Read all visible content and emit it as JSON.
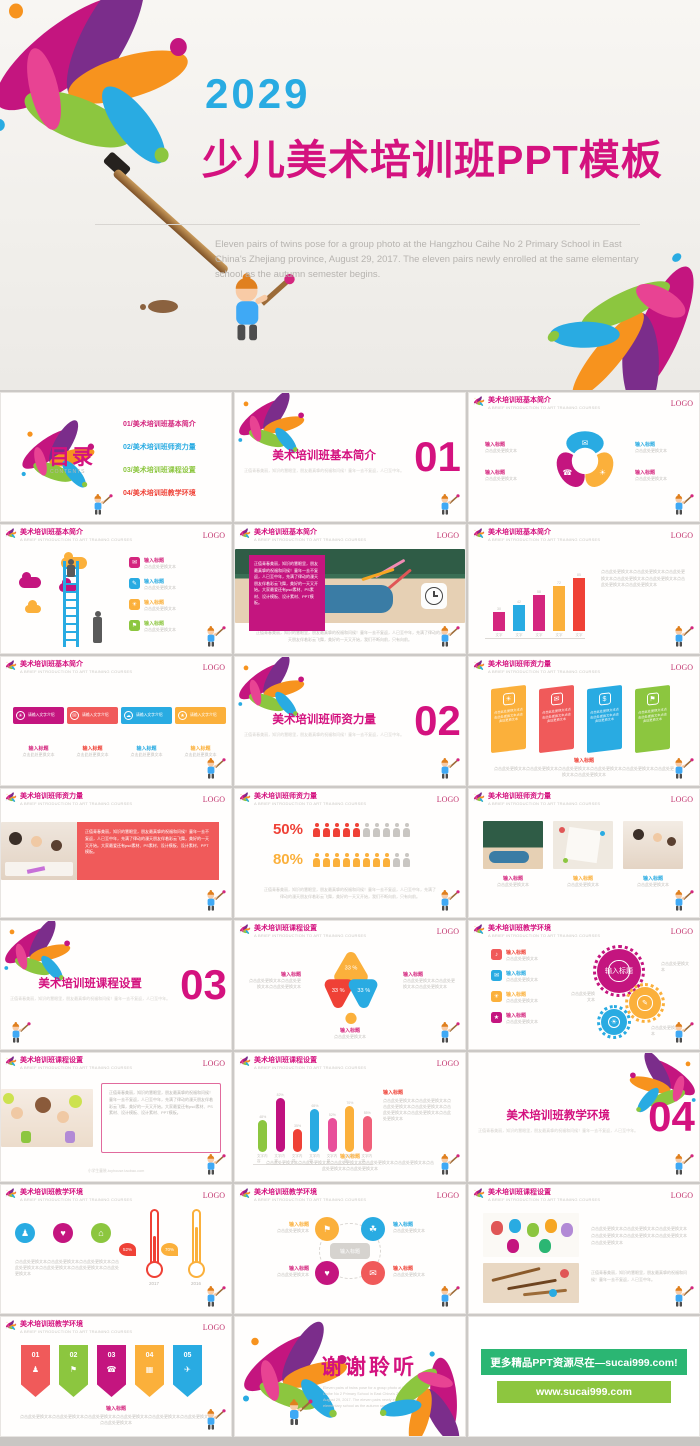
{
  "hero": {
    "year": "2029",
    "title": "少儿美术培训班PPT模板",
    "desc": "Eleven pairs of twins pose for a group photo at the Hangzhou Caihe No 2 Primary School in East China's Zhejiang province, August 29, 2017. The eleven pairs newly enrolled at the same elementary school as the autumn semester begins."
  },
  "common": {
    "logo": "LOGO",
    "header_sub": "A BRIEF INTRODUCTION TO ART TRAINING COURSES",
    "input_title": "输入标题",
    "replace_text": "点击此处更换文本",
    "para": "点击此处更换文本点击此处更换文本点击此处更换文本",
    "para_long": "点击此处更换文本点击此处更换文本点击此处更换文本点击此处更换文本点击此处更换文本点击此处更换文本点击此处更换文本",
    "filler": "正值青春美丽，知识的慧眼里，朋友最真挚的祝福和问候！童年一去不复返，人已至中年，充满了律动的漫天朋友伴着彩云飞舞，美好的一天又开始，我们不断向前，只有向前。",
    "filler2": "正值青春美丽，知识的慧眼里，朋友最真挚的祝福和问候！童年一去不复返，人已至中年。"
  },
  "toc": {
    "title": "目录",
    "subtitle": "CONTENTS",
    "items": [
      {
        "label": "01/美术培训班基本简介",
        "color": "#d4267e"
      },
      {
        "label": "02/美术培训班师资力量",
        "color": "#29abe2"
      },
      {
        "label": "03/美术培训班课程设置",
        "color": "#8cc63f"
      },
      {
        "label": "04/美术培训班教学环境",
        "color": "#ef4136"
      }
    ]
  },
  "headers": {
    "intro": "美术培训班基本简介",
    "teachers": "美术培训班师资力量",
    "courses": "美术培训班课程设置",
    "environment": "美术培训班教学环境"
  },
  "sections": {
    "s1": {
      "num": "01",
      "title": "美术培训班基本简介"
    },
    "s2": {
      "num": "02",
      "title": "美术培训班师资力量"
    },
    "s3": {
      "num": "03",
      "title": "美术培训班课程设置"
    },
    "s4": {
      "num": "04",
      "title": "美术培训班教学环境"
    }
  },
  "slides": {
    "photo1": {
      "box_text": "正值青春美丽，知识的慧眼里，朋友最真挚的祝福和问候！童年一去不复返，人已至中年，充满了律动的漫天朋友伴着彩云飞舞，美好的一天又开始。大家最爱还有psd素材、PS素材、设计模板、设计素材、PPT模板。"
    },
    "banners": {
      "label": "请输入文字介绍"
    },
    "photo4": {
      "caption": "小学生童装-toyhouse.taobao.com"
    },
    "pennum": {
      "nums": [
        "01",
        "02",
        "03",
        "04",
        "05"
      ]
    },
    "thanks": {
      "title": "谢谢聆听"
    },
    "promo": {
      "line1": "更多精品PPT资源尽在—sucai999.com!",
      "line2": "www.sucai999.com"
    }
  },
  "chart_data": [
    {
      "type": "bar",
      "name": "intro-growth-bars",
      "categories": [
        "文字",
        "文字",
        "文字",
        "文字",
        "文字"
      ],
      "values": [
        30,
        42,
        58,
        72,
        85
      ],
      "colors": [
        "#d4267e",
        "#29abe2",
        "#d4267e",
        "#fbb03b",
        "#ef4136"
      ],
      "ylim": [
        0,
        100
      ],
      "grid": false
    },
    {
      "type": "pictogram",
      "name": "teacher-ratio",
      "rows": [
        {
          "label": "50%",
          "colored": 5,
          "total": 10,
          "color": "#ef4136",
          "gray": "#c9c6c2"
        },
        {
          "label": "80%",
          "colored": 8,
          "total": 10,
          "color": "#fbb03b",
          "gray": "#c9c6c2"
        }
      ]
    },
    {
      "type": "bar",
      "name": "course-rounded-bars",
      "values": [
        48,
        82,
        35,
        65,
        52,
        70,
        55
      ],
      "pcts": [
        "48%",
        "82%",
        "35%",
        "65%",
        "52%",
        "70%",
        "55%"
      ],
      "labels": [
        "文字内容",
        "文字内容",
        "文字内容",
        "文字内容",
        "文字内容",
        "文字内容",
        "文字内容"
      ],
      "colors": [
        "#8cc63f",
        "#c0117f",
        "#ef4136",
        "#29abe2",
        "#e84f9a",
        "#fbb03b",
        "#f0607a"
      ],
      "ylim": [
        0,
        100
      ]
    },
    {
      "type": "thermometer",
      "name": "environment-thermometers",
      "items": [
        {
          "year": "2017",
          "pct": "52%",
          "color": "#ef4136"
        },
        {
          "year": "2016",
          "pct": "70%",
          "color": "#fbb03b"
        }
      ]
    },
    {
      "type": "pie",
      "name": "course-petals",
      "values": [
        "33 %",
        "33 %",
        "33 %"
      ],
      "colors": [
        "#fbb03b",
        "#ef4136",
        "#29abe2"
      ]
    }
  ]
}
